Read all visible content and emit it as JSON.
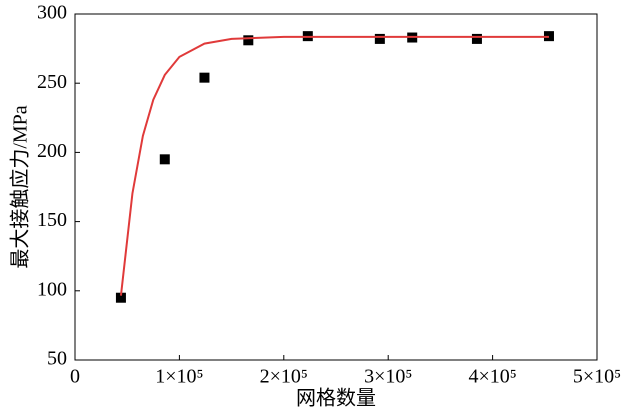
{
  "chart_data": {
    "type": "scatter",
    "xlabel": "网格数量",
    "ylabel": "最大接触应力/MPa",
    "xlim": [
      0,
      500000
    ],
    "ylim": [
      50,
      300
    ],
    "xticks": [
      0,
      {
        "value": 100000,
        "label": "1×10⁵"
      },
      {
        "value": 200000,
        "label": "2×10⁵"
      },
      {
        "value": 300000,
        "label": "3×10⁵"
      },
      {
        "value": 400000,
        "label": "4×10⁵"
      },
      {
        "value": 500000,
        "label": "5×10⁵"
      }
    ],
    "yticks": [
      50,
      100,
      150,
      200,
      250,
      300
    ],
    "series": [
      {
        "color": "#000000",
        "marker": "square",
        "x": [
          44000,
          86000,
          124000,
          166000,
          223000,
          292000,
          323000,
          385000,
          454000
        ],
        "values": [
          95,
          195,
          254,
          281,
          284,
          282,
          283,
          282,
          284
        ]
      },
      {
        "color": "#e03a3a",
        "marker": "line",
        "x": [
          44000,
          55000,
          65000,
          75000,
          86000,
          100000,
          124000,
          150000,
          200000,
          300000,
          400000,
          454000
        ],
        "values": [
          96.5,
          170.3,
          211.9,
          238.1,
          256,
          269,
          278.6,
          282,
          283.5,
          283.5,
          283.5,
          283.5
        ]
      }
    ]
  }
}
